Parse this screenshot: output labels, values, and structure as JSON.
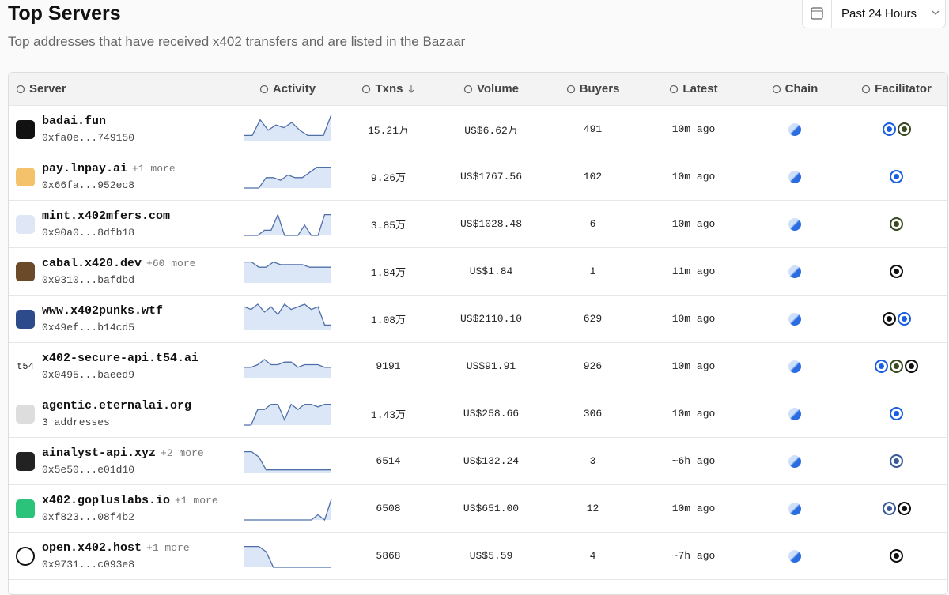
{
  "header": {
    "title": "Top Servers",
    "subtitle": "Top addresses that have received x402 transfers and are listed in the Bazaar",
    "range": "Past 24 Hours"
  },
  "table": {
    "columns": [
      "Server",
      "Activity",
      "Txns",
      "Volume",
      "Buyers",
      "Latest",
      "Chain",
      "Facilitator"
    ],
    "rows": [
      {
        "name": "badai.fun",
        "address": "0xfa0e...749150",
        "activity": [
          2,
          2,
          8,
          4,
          6,
          5,
          7,
          4,
          2,
          2,
          2,
          10
        ],
        "txns": "15.21万",
        "volume": "US$6.62万",
        "buyers": 491,
        "latest": "10m ago"
      },
      {
        "name": "pay.lnpay.ai",
        "more": "+1 more",
        "address": "0x66fa...952ec8",
        "activity": [
          0,
          0,
          0,
          4,
          4,
          3,
          5,
          4,
          4,
          6,
          8,
          8,
          8
        ],
        "txns": "9.26万",
        "volume": "US$1767.56",
        "buyers": 102,
        "latest": "10m ago"
      },
      {
        "name": "mint.x402mfers.com",
        "address": "0x90a0...8dfb18",
        "activity": [
          0,
          0,
          0,
          2,
          2,
          8,
          0,
          0,
          0,
          4,
          0,
          0,
          8,
          8
        ],
        "txns": "3.85万",
        "volume": "US$1028.48",
        "buyers": 6,
        "latest": "10m ago"
      },
      {
        "name": "cabal.x420.dev",
        "more": "+60 more",
        "address": "0x9310...bafdbd",
        "activity": [
          8,
          8,
          6,
          6,
          8,
          7,
          7,
          7,
          7,
          6,
          6,
          6,
          6
        ],
        "txns": "1.84万",
        "volume": "US$1.84",
        "buyers": 1,
        "latest": "11m ago"
      },
      {
        "name": "www.x402punks.wtf",
        "address": "0x49ef...b14cd5",
        "activity": [
          9,
          8,
          10,
          7,
          9,
          6,
          10,
          8,
          9,
          10,
          8,
          9,
          2,
          2
        ],
        "txns": "1.08万",
        "volume": "US$2110.10",
        "buyers": 629,
        "latest": "10m ago"
      },
      {
        "name": "x402-secure-api.t54.ai",
        "logo": "t54",
        "address": "0x0495...baeed9",
        "activity": [
          4,
          4,
          5,
          7,
          5,
          5,
          6,
          6,
          4,
          5,
          5,
          5,
          4,
          4
        ],
        "txns": "9191",
        "volume": "US$91.91",
        "buyers": 926,
        "latest": "10m ago"
      },
      {
        "name": "agentic.eternalai.org",
        "address": "3 addresses",
        "activity": [
          0,
          0,
          6,
          6,
          8,
          8,
          2,
          8,
          6,
          8,
          8,
          7,
          8,
          8
        ],
        "txns": "1.43万",
        "volume": "US$258.66",
        "buyers": 306,
        "latest": "10m ago"
      },
      {
        "name": "ainalyst-api.xyz",
        "more": "+2 more",
        "address": "0x5e50...e01d10",
        "activity": [
          8,
          8,
          6,
          1,
          1,
          1,
          1,
          1,
          1,
          1,
          1,
          1,
          1
        ],
        "txns": "6514",
        "volume": "US$132.24",
        "buyers": 3,
        "latest": "~6h ago"
      },
      {
        "name": "x402.gopluslabs.io",
        "more": "+1 more",
        "address": "0xf823...08f4b2",
        "activity": [
          0,
          0,
          0,
          0,
          0,
          0,
          0,
          0,
          0,
          0,
          0,
          2,
          0,
          8
        ],
        "txns": "6508",
        "volume": "US$651.00",
        "buyers": 12,
        "latest": "10m ago"
      },
      {
        "name": "open.x402.host",
        "more": "+1 more",
        "address": "0x9731...c093e8",
        "activity": [
          8,
          8,
          8,
          6,
          0,
          0,
          0,
          0,
          0,
          0,
          0,
          0,
          0
        ],
        "txns": "5868",
        "volume": "US$5.59",
        "buyers": 4,
        "latest": "~7h ago"
      }
    ]
  }
}
